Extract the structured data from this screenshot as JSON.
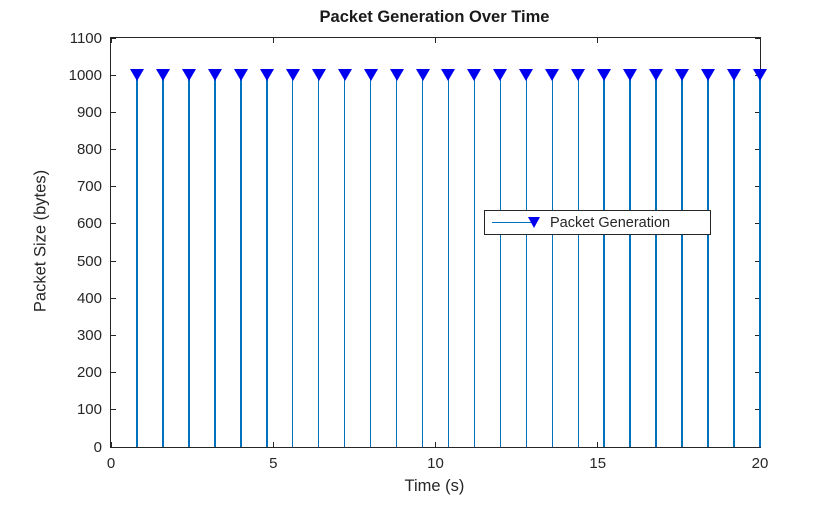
{
  "chart_data": {
    "type": "stem",
    "title": "Packet Generation Over Time",
    "xlabel": "Time (s)",
    "ylabel": "Packet Size (bytes)",
    "xlim": [
      0,
      20
    ],
    "ylim": [
      0,
      1100
    ],
    "x_ticks": [
      0,
      5,
      10,
      15,
      20
    ],
    "y_ticks": [
      0,
      100,
      200,
      300,
      400,
      500,
      600,
      700,
      800,
      900,
      1000,
      1100
    ],
    "grid": false,
    "tick_direction": "in",
    "box": true,
    "legend": {
      "label": "Packet Generation",
      "position": "center-right",
      "marker": "triangle-down-icon"
    },
    "series": [
      {
        "name": "Packet Generation",
        "marker": "triangle-down-icon",
        "x": [
          0.8,
          1.6,
          2.4,
          3.2,
          4.0,
          4.8,
          5.6,
          6.4,
          7.2,
          8.0,
          8.8,
          9.6,
          10.4,
          11.2,
          12.0,
          12.8,
          13.6,
          14.4,
          15.2,
          16.0,
          16.8,
          17.6,
          18.4,
          19.2,
          20.0
        ],
        "y": [
          1000,
          1000,
          1000,
          1000,
          1000,
          1000,
          1000,
          1000,
          1000,
          1000,
          1000,
          1000,
          1000,
          1000,
          1000,
          1000,
          1000,
          1000,
          1000,
          1000,
          1000,
          1000,
          1000,
          1000,
          1000
        ]
      }
    ],
    "colors": {
      "stem_line": "#0072BD",
      "marker_fill": "#0000EE",
      "axis": "#262626",
      "text": "#262626",
      "title_text": "#1a1a1a",
      "background": "#ffffff"
    }
  }
}
